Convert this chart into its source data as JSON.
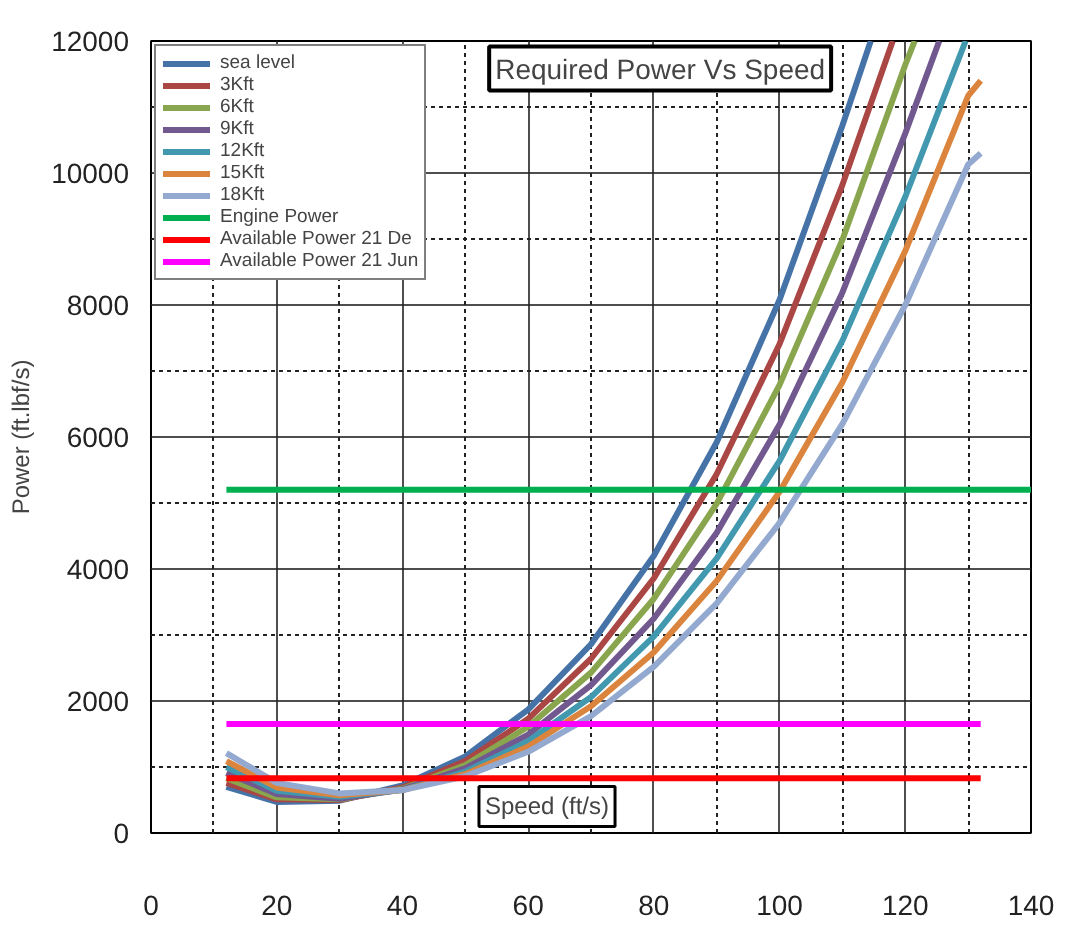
{
  "chart_data": {
    "type": "line",
    "title": "Required Power Vs Speed",
    "xlabel": "Speed (ft/s)",
    "ylabel": "Power (ft.lbf/s)",
    "xlim": [
      0,
      140
    ],
    "xticks": [
      0,
      20,
      40,
      60,
      80,
      100,
      120,
      140
    ],
    "ylim": [
      0,
      12000
    ],
    "yticks": [
      0,
      2000,
      4000,
      6000,
      8000,
      10000,
      12000
    ],
    "grid": true,
    "legend": "top left",
    "line_style": "solid",
    "marker": "none",
    "series": [
      {
        "name": "sea level",
        "color": "#4572a7",
        "x": [
          12,
          20,
          30,
          40,
          50,
          60,
          70,
          80,
          90,
          100,
          110,
          114.5
        ],
        "values": [
          700,
          470,
          490,
          720,
          1160,
          1870,
          2860,
          4200,
          5920,
          8080,
          10720,
          12000
        ]
      },
      {
        "name": "3Kft",
        "color": "#aa4643",
        "x": [
          12,
          20,
          30,
          40,
          50,
          60,
          70,
          80,
          90,
          100,
          110,
          118
        ],
        "values": [
          760,
          510,
          500,
          690,
          1090,
          1730,
          2640,
          3860,
          5440,
          7410,
          9820,
          12000
        ]
      },
      {
        "name": "6Kft",
        "color": "#89a54e",
        "x": [
          12,
          20,
          30,
          40,
          50,
          60,
          70,
          80,
          90,
          100,
          110,
          120,
          121.5
        ],
        "values": [
          830,
          540,
          510,
          670,
          1030,
          1610,
          2430,
          3550,
          4990,
          6790,
          8990,
          11640,
          12000
        ]
      },
      {
        "name": "9Kft",
        "color": "#71588f",
        "x": [
          12,
          20,
          30,
          40,
          50,
          60,
          70,
          80,
          90,
          100,
          110,
          120,
          125.4
        ],
        "values": [
          910,
          590,
          520,
          660,
          980,
          1490,
          2240,
          3250,
          4550,
          6190,
          8190,
          10600,
          12000
        ]
      },
      {
        "name": "12Kft",
        "color": "#4198af",
        "x": [
          12,
          20,
          30,
          40,
          50,
          60,
          70,
          80,
          90,
          100,
          110,
          120,
          129.6
        ],
        "values": [
          1000,
          640,
          550,
          650,
          930,
          1390,
          2060,
          2980,
          4160,
          5640,
          7460,
          9640,
          12000
        ]
      },
      {
        "name": "15Kft",
        "color": "#db843d",
        "x": [
          12,
          20,
          30,
          40,
          50,
          60,
          70,
          80,
          90,
          100,
          110,
          120,
          130,
          132
        ],
        "values": [
          1090,
          690,
          570,
          650,
          890,
          1310,
          1920,
          2740,
          3820,
          5170,
          6830,
          8820,
          11170,
          11400
        ]
      },
      {
        "name": "18Kft",
        "color": "#93a9cf",
        "x": [
          12,
          20,
          30,
          40,
          50,
          60,
          70,
          80,
          90,
          100,
          110,
          120,
          130,
          132
        ],
        "values": [
          1210,
          760,
          600,
          650,
          860,
          1230,
          1770,
          2520,
          3480,
          4700,
          6200,
          8000,
          10130,
          10300
        ]
      },
      {
        "name": "Engine Power",
        "color": "#00b050",
        "x": [
          12,
          140
        ],
        "values": [
          5200,
          5200
        ]
      },
      {
        "name": "Available Power 21 De",
        "color": "#ff0000",
        "x": [
          12,
          132
        ],
        "values": [
          830,
          830
        ]
      },
      {
        "name": "Available Power 21 Jun",
        "color": "#ff00ff",
        "x": [
          12,
          132
        ],
        "values": [
          1650,
          1650
        ]
      }
    ]
  }
}
